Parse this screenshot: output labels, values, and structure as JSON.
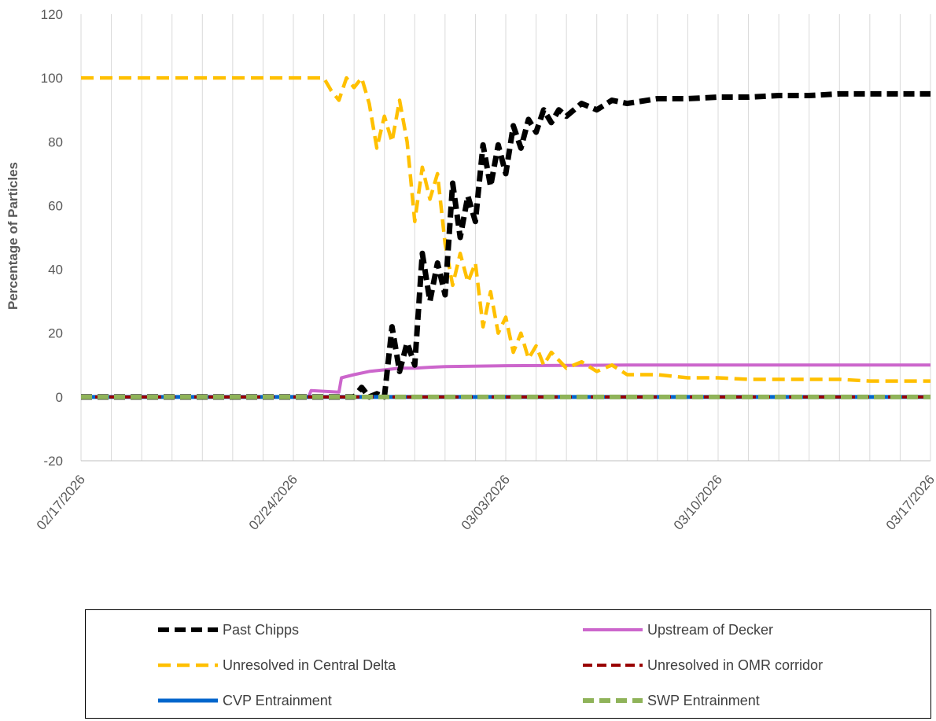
{
  "chart_data": {
    "type": "line",
    "title": "",
    "xlabel": "",
    "ylabel": "Percentage of Particles",
    "ylim": [
      -20,
      120
    ],
    "yticks": [
      "-20",
      "0",
      "20",
      "40",
      "60",
      "80",
      "100",
      "120"
    ],
    "xlim": [
      "02/17/2026",
      "03/17/2026"
    ],
    "xticks": [
      "02/17/2026",
      "02/24/2026",
      "03/03/2026",
      "03/10/2026",
      "03/17/2026"
    ],
    "grid": "vertical gridlines at daily intervals",
    "legend_position": "bottom",
    "series": [
      {
        "name": "Past Chipps",
        "color": "#000000",
        "style": "dash-dot",
        "points": [
          [
            "02/17/2026",
            0
          ],
          [
            "02/25/2026 12:00",
            0
          ],
          [
            "02/26/2026",
            0
          ],
          [
            "02/26/2026 06:00",
            3
          ],
          [
            "02/26/2026 12:00",
            0
          ],
          [
            "02/26/2026 18:00",
            1
          ],
          [
            "02/27/2026",
            0
          ],
          [
            "02/27/2026 06:00",
            22
          ],
          [
            "02/27/2026 12:00",
            8
          ],
          [
            "02/27/2026 18:00",
            17
          ],
          [
            "02/28/2026",
            10
          ],
          [
            "02/28/2026 06:00",
            45
          ],
          [
            "02/28/2026 12:00",
            30
          ],
          [
            "02/28/2026 18:00",
            42
          ],
          [
            "03/01/2026",
            32
          ],
          [
            "03/01/2026 06:00",
            67
          ],
          [
            "03/01/2026 12:00",
            50
          ],
          [
            "03/01/2026 18:00",
            63
          ],
          [
            "03/02/2026",
            55
          ],
          [
            "03/02/2026 06:00",
            79
          ],
          [
            "03/02/2026 12:00",
            66
          ],
          [
            "03/02/2026 18:00",
            79
          ],
          [
            "03/03/2026",
            70
          ],
          [
            "03/03/2026 06:00",
            85
          ],
          [
            "03/03/2026 12:00",
            78
          ],
          [
            "03/03/2026 18:00",
            87
          ],
          [
            "03/04/2026",
            83
          ],
          [
            "03/04/2026 06:00",
            90
          ],
          [
            "03/04/2026 12:00",
            86
          ],
          [
            "03/04/2026 18:00",
            90
          ],
          [
            "03/05/2026",
            88
          ],
          [
            "03/05/2026 12:00",
            92
          ],
          [
            "03/06/2026",
            90
          ],
          [
            "03/06/2026 12:00",
            93
          ],
          [
            "03/07/2026",
            92
          ],
          [
            "03/08/2026",
            93.5
          ],
          [
            "03/09/2026",
            93.5
          ],
          [
            "03/10/2026",
            94
          ],
          [
            "03/11/2026",
            94
          ],
          [
            "03/12/2026",
            94.5
          ],
          [
            "03/13/2026",
            94.5
          ],
          [
            "03/14/2026",
            95
          ],
          [
            "03/15/2026",
            95
          ],
          [
            "03/16/2026",
            95
          ],
          [
            "03/17/2026",
            95
          ]
        ]
      },
      {
        "name": "Upstream of Decker",
        "color": "#CC66CC",
        "style": "solid",
        "points": [
          [
            "02/17/2026",
            0
          ],
          [
            "02/24/2026 12:00",
            0
          ],
          [
            "02/24/2026 14:00",
            2
          ],
          [
            "02/25/2026 12:00",
            1.5
          ],
          [
            "02/25/2026 14:00",
            6
          ],
          [
            "02/26/2026",
            7
          ],
          [
            "02/26/2026 12:00",
            8
          ],
          [
            "02/27/2026",
            8.5
          ],
          [
            "02/27/2026 12:00",
            9
          ],
          [
            "02/28/2026",
            9
          ],
          [
            "02/28/2026 12:00",
            9.3
          ],
          [
            "03/01/2026",
            9.5
          ],
          [
            "03/03/2026",
            9.8
          ],
          [
            "03/07/2026",
            10
          ],
          [
            "03/17/2026",
            10
          ]
        ]
      },
      {
        "name": "Unresolved in Central Delta",
        "color": "#FFC000",
        "style": "dashed",
        "points": [
          [
            "02/17/2026",
            100
          ],
          [
            "02/25/2026",
            100
          ],
          [
            "02/25/2026 06:00",
            96
          ],
          [
            "02/25/2026 12:00",
            93
          ],
          [
            "02/25/2026 18:00",
            100
          ],
          [
            "02/26/2026",
            97
          ],
          [
            "02/26/2026 06:00",
            100
          ],
          [
            "02/26/2026 12:00",
            92
          ],
          [
            "02/26/2026 18:00",
            78
          ],
          [
            "02/27/2026",
            88
          ],
          [
            "02/27/2026 06:00",
            80
          ],
          [
            "02/27/2026 12:00",
            93
          ],
          [
            "02/27/2026 18:00",
            80
          ],
          [
            "02/28/2026",
            55
          ],
          [
            "02/28/2026 06:00",
            72
          ],
          [
            "02/28/2026 12:00",
            62
          ],
          [
            "02/28/2026 18:00",
            70
          ],
          [
            "03/01/2026",
            48
          ],
          [
            "03/01/2026 06:00",
            35
          ],
          [
            "03/01/2026 12:00",
            45
          ],
          [
            "03/01/2026 18:00",
            36
          ],
          [
            "03/02/2026",
            42
          ],
          [
            "03/02/2026 06:00",
            22
          ],
          [
            "03/02/2026 12:00",
            33
          ],
          [
            "03/02/2026 18:00",
            20
          ],
          [
            "03/03/2026",
            25
          ],
          [
            "03/03/2026 06:00",
            14
          ],
          [
            "03/03/2026 12:00",
            20
          ],
          [
            "03/03/2026 18:00",
            12
          ],
          [
            "03/04/2026",
            16
          ],
          [
            "03/04/2026 06:00",
            10
          ],
          [
            "03/04/2026 12:00",
            14
          ],
          [
            "03/05/2026",
            9
          ],
          [
            "03/05/2026 12:00",
            11
          ],
          [
            "03/06/2026",
            8
          ],
          [
            "03/06/2026 12:00",
            10
          ],
          [
            "03/07/2026",
            7
          ],
          [
            "03/08/2026",
            7
          ],
          [
            "03/09/2026",
            6
          ],
          [
            "03/10/2026",
            6
          ],
          [
            "03/11/2026",
            5.5
          ],
          [
            "03/12/2026",
            5.5
          ],
          [
            "03/13/2026",
            5.5
          ],
          [
            "03/14/2026",
            5.5
          ],
          [
            "03/15/2026",
            5
          ],
          [
            "03/16/2026",
            5
          ],
          [
            "03/17/2026",
            5
          ]
        ]
      },
      {
        "name": "Unresolved in OMR corridor",
        "color": "#990000",
        "style": "dashed",
        "points": [
          [
            "02/17/2026",
            0
          ],
          [
            "03/17/2026",
            0
          ]
        ]
      },
      {
        "name": "CVP Entrainment",
        "color": "#0066CC",
        "style": "solid",
        "points": [
          [
            "02/17/2026",
            0
          ],
          [
            "03/17/2026",
            0
          ]
        ]
      },
      {
        "name": "SWP Entrainment",
        "color": "#8FB359",
        "style": "dash-dot",
        "points": [
          [
            "02/17/2026",
            0
          ],
          [
            "03/17/2026",
            0
          ]
        ]
      }
    ]
  },
  "legend": {
    "items": [
      {
        "label": "Past Chipps",
        "color": "#000000",
        "style": "dash-dot"
      },
      {
        "label": "Upstream of Decker",
        "color": "#CC66CC",
        "style": "solid"
      },
      {
        "label": "Unresolved in Central Delta",
        "color": "#FFC000",
        "style": "dashed"
      },
      {
        "label": "Unresolved in OMR corridor",
        "color": "#990000",
        "style": "dashed"
      },
      {
        "label": "CVP Entrainment",
        "color": "#0066CC",
        "style": "solid"
      },
      {
        "label": "SWP Entrainment",
        "color": "#8FB359",
        "style": "dash-dot"
      }
    ]
  }
}
